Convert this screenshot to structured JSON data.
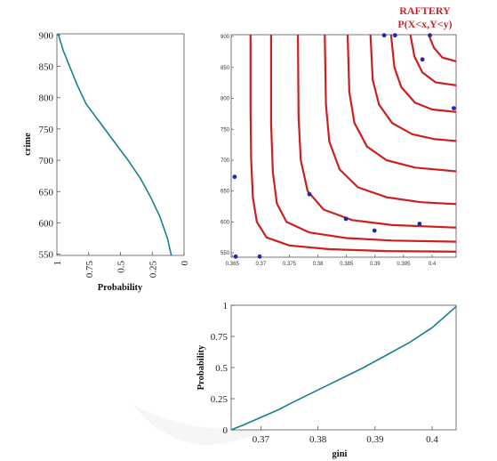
{
  "chart_data": [
    {
      "id": "left-marginal",
      "type": "line",
      "title": "",
      "xlabel": "Probability",
      "ylabel": "crime",
      "xlim": [
        1,
        0
      ],
      "ylim": [
        548,
        902
      ],
      "xticks": [
        1,
        0.75,
        0.5,
        0.25,
        0
      ],
      "xtick_labels": [
        "1",
        "0.75",
        "0.5",
        "0.25",
        "0"
      ],
      "yticks": [
        550,
        600,
        650,
        700,
        750,
        800,
        850,
        900
      ],
      "ytick_labels": [
        "550",
        "600",
        "650",
        "700",
        "750",
        "800",
        "850",
        "900"
      ],
      "series": [
        {
          "color": "#16808f",
          "x": [
            0.99,
            0.95,
            0.9,
            0.84,
            0.77,
            0.66,
            0.55,
            0.44,
            0.34,
            0.26,
            0.19,
            0.13,
            0.1
          ],
          "y": [
            902,
            875,
            850,
            820,
            790,
            760,
            730,
            700,
            670,
            640,
            610,
            575,
            548
          ]
        }
      ],
      "grid": false
    },
    {
      "id": "contour",
      "type": "line",
      "title": "RAFTERY",
      "subtitle": "P(X<x,Y<y)",
      "xlabel": "",
      "ylabel": "",
      "xlim": [
        0.3648,
        0.4042
      ],
      "ylim": [
        543,
        903
      ],
      "xticks": [
        0.365,
        0.37,
        0.375,
        0.38,
        0.385,
        0.39,
        0.395,
        0.4
      ],
      "xtick_labels": [
        "0.365",
        "0.37",
        "0.375",
        "0.38",
        "0.385",
        "0.39",
        "0.395",
        "0.4"
      ],
      "yticks": [
        550,
        600,
        650,
        700,
        750,
        800,
        850,
        900
      ],
      "ytick_labels": [
        "550",
        "600",
        "650",
        "700",
        "750",
        "800",
        "850",
        "900"
      ],
      "contour_color": "#cc1f1f",
      "contours": [
        {
          "x": [
            0.3682,
            0.3682,
            0.3683,
            0.3686,
            0.3693,
            0.371,
            0.375,
            0.382,
            0.392,
            0.4042
          ],
          "y": [
            903,
            780,
            700,
            640,
            600,
            575,
            562,
            556,
            553,
            552
          ]
        },
        {
          "x": [
            0.3718,
            0.3718,
            0.3721,
            0.3728,
            0.3745,
            0.3785,
            0.385,
            0.393,
            0.4042
          ],
          "y": [
            903,
            760,
            680,
            630,
            600,
            583,
            574,
            570,
            568
          ]
        },
        {
          "x": [
            0.3765,
            0.3766,
            0.377,
            0.3782,
            0.381,
            0.386,
            0.393,
            0.4042
          ],
          "y": [
            903,
            770,
            700,
            650,
            620,
            603,
            595,
            591
          ]
        },
        {
          "x": [
            0.3812,
            0.3814,
            0.382,
            0.3838,
            0.387,
            0.392,
            0.398,
            0.4042
          ],
          "y": [
            903,
            790,
            730,
            685,
            656,
            640,
            632,
            629
          ]
        },
        {
          "x": [
            0.3852,
            0.3855,
            0.3864,
            0.3886,
            0.392,
            0.397,
            0.4042
          ],
          "y": [
            903,
            810,
            760,
            722,
            700,
            688,
            682
          ]
        },
        {
          "x": [
            0.3892,
            0.3896,
            0.3907,
            0.393,
            0.3965,
            0.4005,
            0.4042
          ],
          "y": [
            903,
            830,
            790,
            760,
            742,
            734,
            731
          ]
        },
        {
          "x": [
            0.3928,
            0.3934,
            0.3946,
            0.397,
            0.4,
            0.4042
          ],
          "y": [
            903,
            850,
            818,
            793,
            782,
            778
          ]
        },
        {
          "x": [
            0.3962,
            0.3969,
            0.3983,
            0.4006,
            0.4042
          ],
          "y": [
            903,
            868,
            842,
            826,
            821
          ]
        },
        {
          "x": [
            0.3994,
            0.4003,
            0.4018,
            0.4042
          ],
          "y": [
            903,
            882,
            866,
            860
          ]
        }
      ],
      "points_color": "#1a2bb0",
      "points": [
        {
          "x": 0.3654,
          "y": 673
        },
        {
          "x": 0.3656,
          "y": 544
        },
        {
          "x": 0.3698,
          "y": 544
        },
        {
          "x": 0.3785,
          "y": 645
        },
        {
          "x": 0.3849,
          "y": 605
        },
        {
          "x": 0.3899,
          "y": 586
        },
        {
          "x": 0.3978,
          "y": 597
        },
        {
          "x": 0.3916,
          "y": 902
        },
        {
          "x": 0.3935,
          "y": 902
        },
        {
          "x": 0.3996,
          "y": 902
        },
        {
          "x": 0.3983,
          "y": 863
        },
        {
          "x": 0.4038,
          "y": 784
        }
      ],
      "grid": false
    },
    {
      "id": "bottom-marginal",
      "type": "line",
      "title": "",
      "xlabel": "gini",
      "ylabel": "Probability",
      "xlim": [
        0.3648,
        0.4042
      ],
      "ylim": [
        0,
        1
      ],
      "xticks": [
        0.37,
        0.38,
        0.39,
        0.4
      ],
      "xtick_labels": [
        "0.37",
        "0.38",
        "0.39",
        "0.4"
      ],
      "yticks": [
        0,
        0.25,
        0.5,
        0.75,
        1
      ],
      "ytick_labels": [
        "0",
        "0.25",
        "0.5",
        "0.75",
        "1"
      ],
      "series": [
        {
          "color": "#16808f",
          "x": [
            0.3648,
            0.367,
            0.37,
            0.373,
            0.376,
            0.38,
            0.384,
            0.388,
            0.392,
            0.396,
            0.4,
            0.4042
          ],
          "y": [
            0.0,
            0.04,
            0.1,
            0.16,
            0.23,
            0.32,
            0.41,
            0.5,
            0.6,
            0.7,
            0.82,
            0.99
          ]
        }
      ],
      "grid": false
    }
  ]
}
